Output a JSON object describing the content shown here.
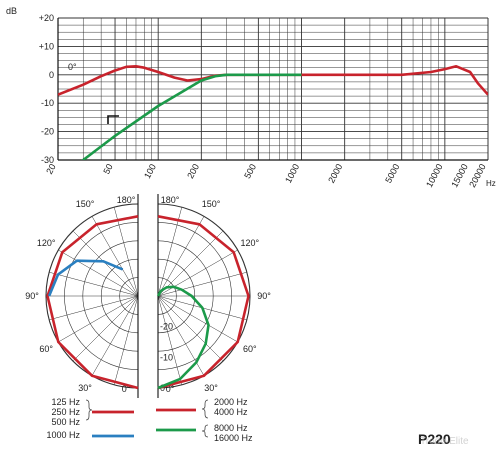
{
  "chart_data": [
    {
      "type": "line",
      "title": "",
      "xlabel": "Hz",
      "ylabel": "dB",
      "x_scale": "log",
      "xlim": [
        20,
        20000
      ],
      "ylim": [
        -30,
        20
      ],
      "y_ticks": [
        "+20",
        "+10",
        "0",
        "-10",
        "-20",
        "-30"
      ],
      "x_ticks": [
        "20",
        "50",
        "100",
        "200",
        "500",
        "1000",
        "2000",
        "5000",
        "10000",
        "15000",
        "20000"
      ],
      "annotations": [
        "0°"
      ],
      "series": [
        {
          "color": "#c8232c",
          "x": [
            20,
            30,
            40,
            50,
            60,
            70,
            80,
            100,
            130,
            160,
            200,
            250,
            300,
            500,
            1000,
            2000,
            5000,
            8000,
            10000,
            12000,
            15000,
            17000,
            20000
          ],
          "y": [
            -7,
            -3.5,
            -0.5,
            1.5,
            2.8,
            3,
            2.5,
            1,
            -1,
            -2,
            -1.5,
            -0.3,
            0,
            0,
            0,
            0,
            0,
            1,
            2,
            3,
            1,
            -3,
            -7
          ]
        },
        {
          "color": "#1c9a4a",
          "x": [
            20,
            30,
            50,
            100,
            200,
            250,
            300,
            500,
            1000
          ],
          "y": [
            -48,
            -30,
            -21.5,
            -11,
            -2,
            -0.5,
            0,
            0,
            0
          ]
        }
      ]
    },
    {
      "type": "polar",
      "title": "P220",
      "angle_labels": [
        "180°",
        "150°",
        "120°",
        "90°",
        "60°",
        "30°",
        "0°"
      ],
      "radial_labels": [
        "-20",
        "-10",
        "0"
      ],
      "legend": [
        {
          "labels": [
            "125 Hz",
            "250 Hz",
            "500 Hz"
          ],
          "color": "#c8232c"
        },
        {
          "labels": [
            "1000 Hz"
          ],
          "color": "#2a7fc0"
        },
        {
          "labels": [
            "2000 Hz",
            "4000 Hz"
          ],
          "color": "#c8232c"
        },
        {
          "labels": [
            "8000 Hz",
            "16000 Hz"
          ],
          "color": "#1c9a4a"
        }
      ],
      "series": [
        {
          "legend_group": 0,
          "side": "left",
          "angle_deg": [
            0,
            30,
            60,
            90,
            120,
            150,
            180
          ],
          "db": [
            0,
            0,
            0,
            -0.5,
            -1.5,
            -3,
            -4
          ]
        },
        {
          "legend_group": 1,
          "side": "left",
          "angle_deg": [
            90,
            105,
            120,
            135,
            150
          ],
          "db": [
            -1,
            -3,
            -7,
            -14,
            -20
          ]
        },
        {
          "legend_group": 2,
          "side": "right",
          "angle_deg": [
            0,
            30,
            60,
            90,
            120,
            150,
            180
          ],
          "db": [
            0,
            0,
            0,
            -0.5,
            -1.5,
            -3,
            -4
          ]
        },
        {
          "legend_group": 3,
          "side": "right",
          "angle_deg": [
            0,
            15,
            30,
            45,
            60,
            75,
            90,
            105,
            120,
            135,
            150,
            165,
            180
          ],
          "db": [
            0,
            -2,
            -5,
            -8,
            -11,
            -15,
            -19,
            -22,
            -24,
            -26,
            -28,
            -30,
            -30
          ]
        }
      ]
    }
  ],
  "brand": "P220",
  "watermark": "Trodo-Elite"
}
